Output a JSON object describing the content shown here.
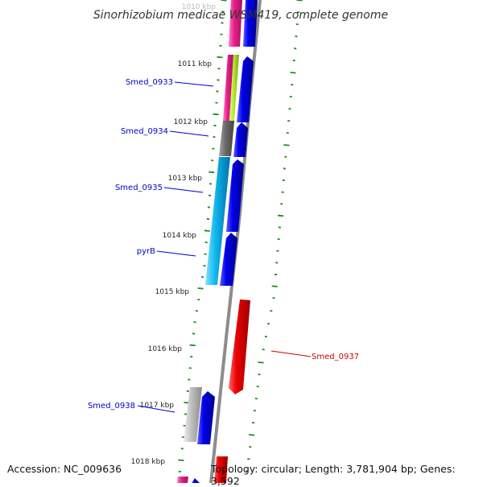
{
  "title": "Sinorhizobium medicae WSM419, complete genome",
  "accession": "Accession: NC_009636",
  "summary": "Topology: circular; Length: 3,781,904 bp; Genes: 3,592",
  "kbp_labels": [
    "1010 kbp",
    "1011 kbp",
    "1012 kbp",
    "1013 kbp",
    "1014 kbp",
    "1015 kbp",
    "1016 kbp",
    "1017 kbp",
    "1018 kbp"
  ],
  "gene_labels": [
    "Smed_0933",
    "Smed_0934",
    "Smed_0935",
    "pyrB",
    "Smed_0937",
    "Smed_0938"
  ],
  "colors": {
    "backbone": "#8c8c8c",
    "tick": "#1e8c1e",
    "forward_gene": "#0000ee",
    "reverse_gene": "#ee0000",
    "label_blue": "#0000cc",
    "label_red": "#cc0000",
    "magenta": "#e8208c",
    "yellow_green": "#b8ee30",
    "gray": "#707070",
    "cyan": "#10b8ee",
    "light_gray": "#bdbdbd"
  }
}
